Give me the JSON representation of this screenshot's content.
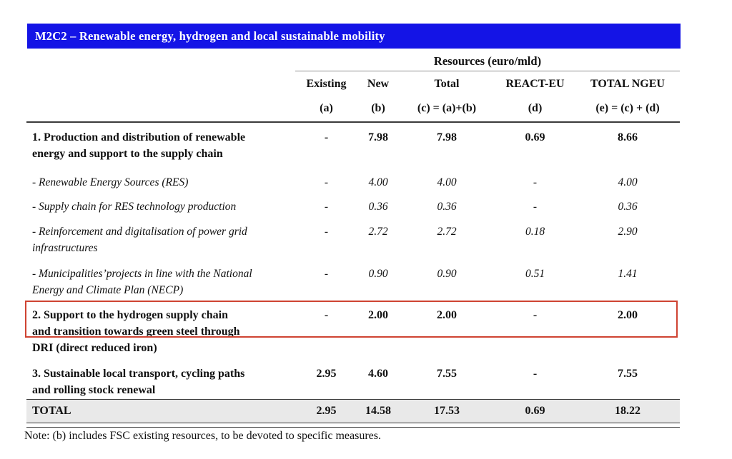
{
  "title_bar": {
    "text": "M2C2 – Renewable energy, hydrogen and local sustainable mobility"
  },
  "header": {
    "group_label": "Resources (euro/mld)",
    "columns": [
      "Existing",
      "New",
      "Total",
      "REACT-EU",
      "TOTAL NGEU"
    ],
    "formulas": [
      "(a)",
      "(b)",
      "(c) = (a)+(b)",
      "(d)",
      "(e) = (c) + (d)"
    ]
  },
  "rows": [
    {
      "label": "1.  Production and distribution of renewable\nenergy and support to the supply chain",
      "style": "bold",
      "highlighted": false,
      "values": [
        "-",
        "7.98",
        "7.98",
        "0.69",
        "8.66"
      ]
    },
    {
      "label": "- Renewable Energy Sources (RES)",
      "style": "italic",
      "highlighted": false,
      "values": [
        "-",
        "4.00",
        "4.00",
        "-",
        "4.00"
      ]
    },
    {
      "label": "- Supply chain for RES technology production",
      "style": "italic",
      "highlighted": false,
      "values": [
        "-",
        "0.36",
        "0.36",
        "-",
        "0.36"
      ]
    },
    {
      "label": "- Reinforcement and digitalisation of power grid\ninfrastructures",
      "style": "italic",
      "highlighted": false,
      "values": [
        "-",
        "2.72",
        "2.72",
        "0.18",
        "2.90"
      ]
    },
    {
      "label": "- Municipalities’projects in line with the National\nEnergy and Climate Plan (NECP)",
      "style": "italic",
      "highlighted": false,
      "values": [
        "-",
        "0.90",
        "0.90",
        "0.51",
        "1.41"
      ]
    },
    {
      "label": "2.  Support to the hydrogen supply chain\nand transition towards green steel through\nDRI (direct reduced iron)",
      "style": "bold",
      "highlighted": true,
      "values": [
        "-",
        "2.00",
        "2.00",
        "-",
        "2.00"
      ]
    },
    {
      "label": "3.  Sustainable local transport, cycling paths\nand rolling stock renewal",
      "style": "bold",
      "highlighted": false,
      "values": [
        "2.95",
        "4.60",
        "7.55",
        "-",
        "7.55"
      ]
    }
  ],
  "total_row": {
    "label": "TOTAL",
    "values": [
      "2.95",
      "14.58",
      "17.53",
      "0.69",
      "18.22"
    ]
  },
  "note": "Note: (b) includes FSC existing resources, to be devoted to specific measures.",
  "colors": {
    "title_bar_bg": "#1414e6",
    "title_text": "#ffffff",
    "highlight_border": "#cf4332",
    "total_band_bg": "#e9e9e9",
    "rule_gray": "#8f8f8f",
    "rule_dark": "#3a3a3a"
  }
}
